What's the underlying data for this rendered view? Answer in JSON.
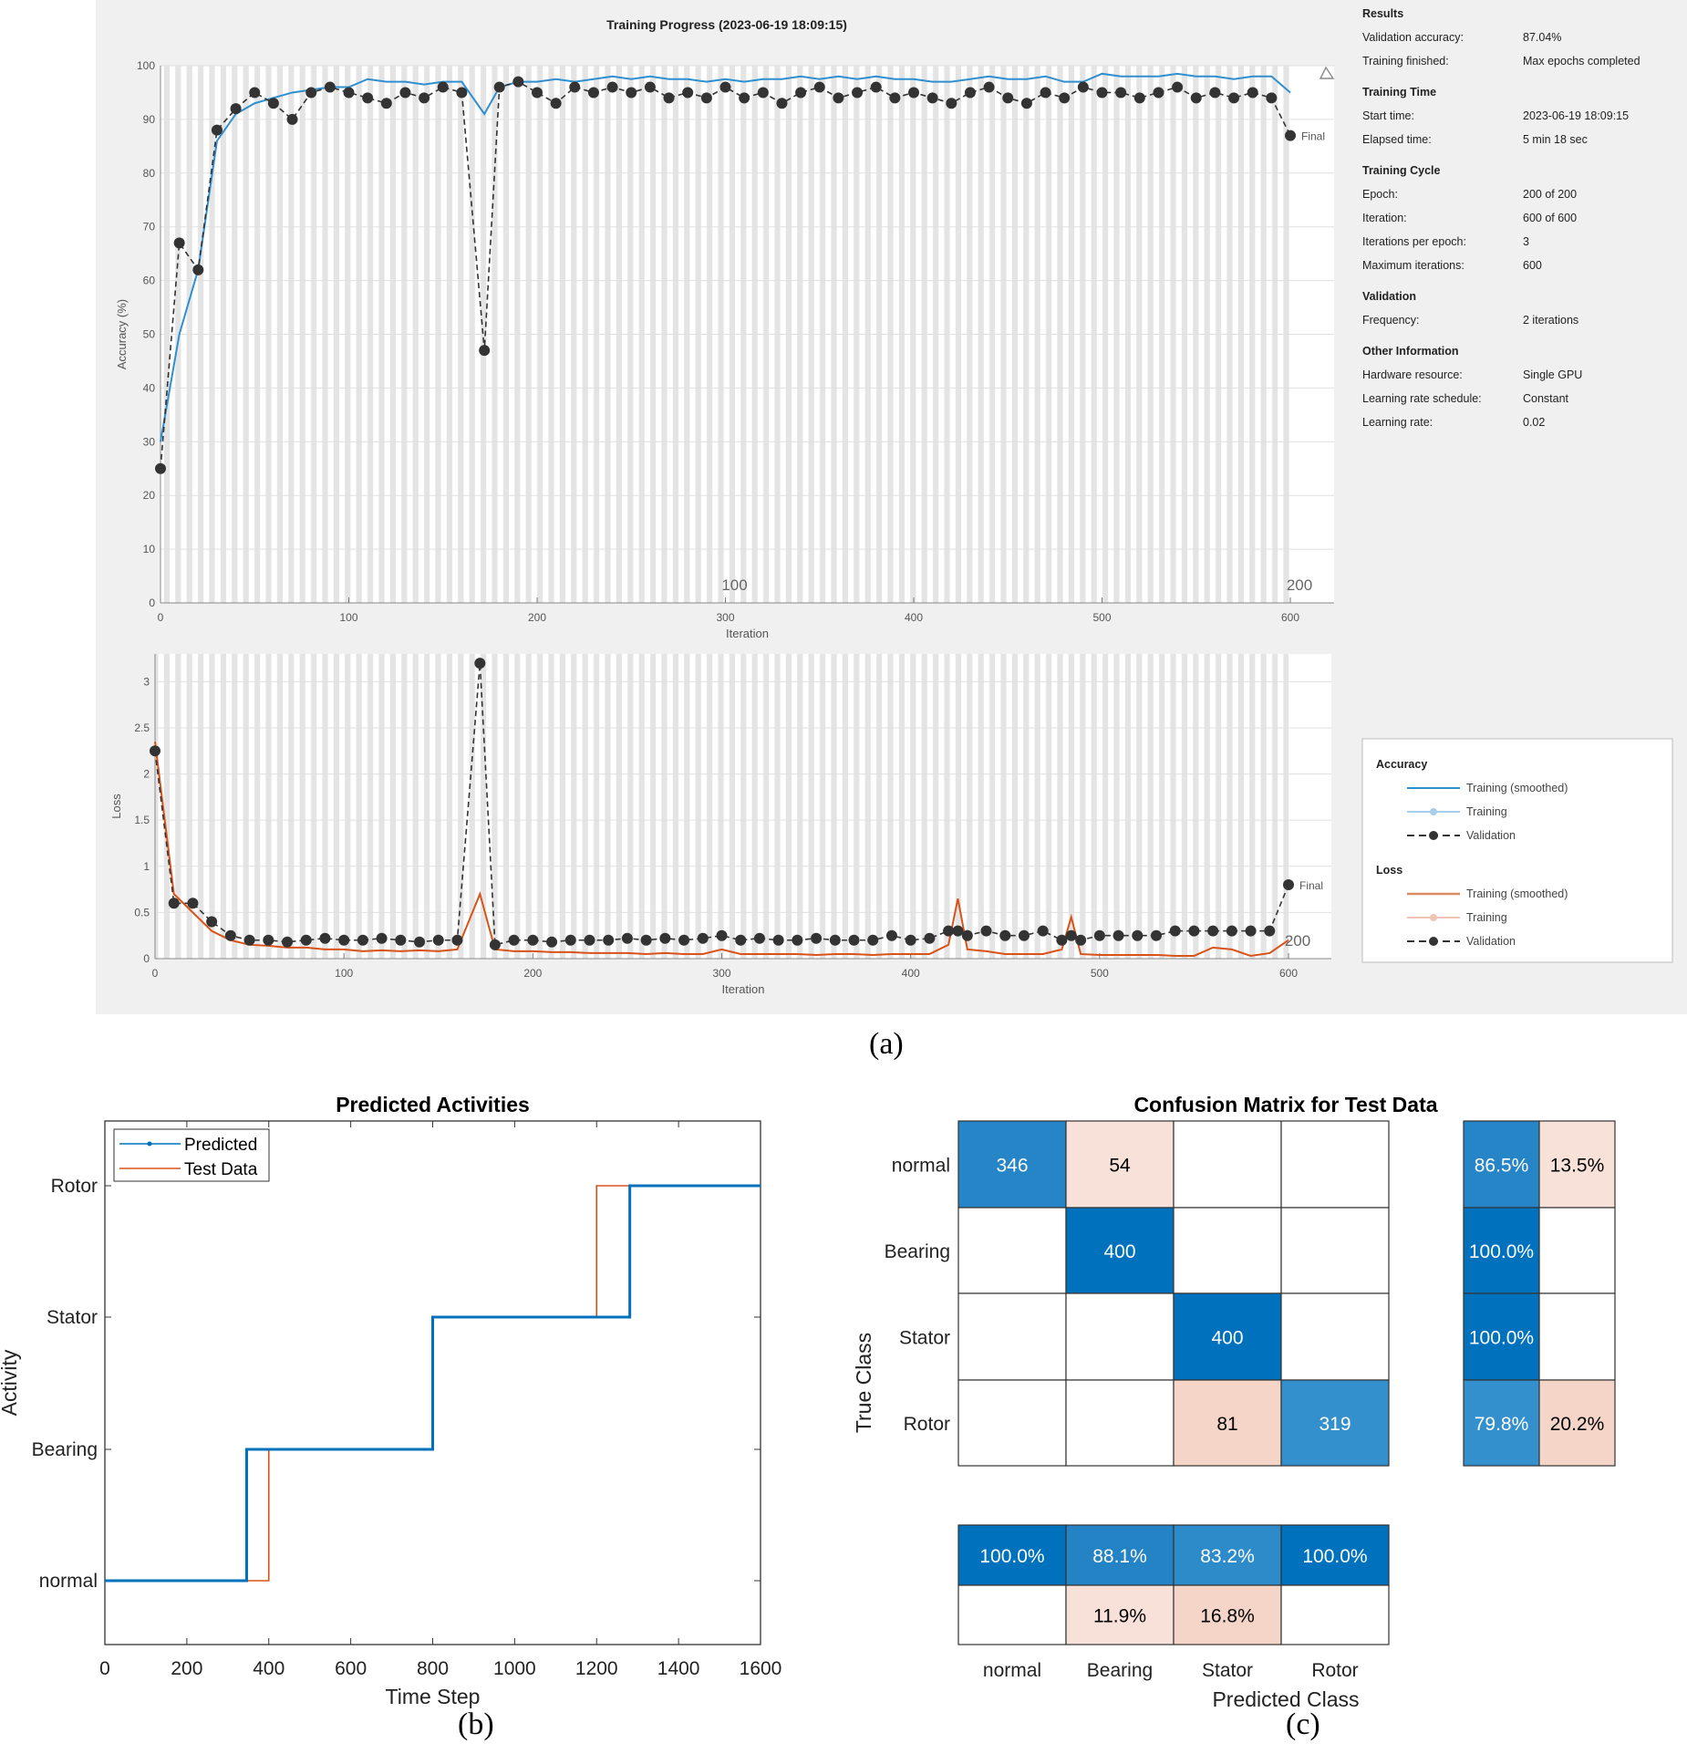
{
  "training_progress": {
    "title": "Training Progress (2023-06-19 18:09:15)",
    "info": [
      {
        "heading": "Results",
        "rows": [
          [
            "Validation accuracy:",
            "87.04%"
          ],
          [
            "Training finished:",
            "Max epochs completed"
          ]
        ]
      },
      {
        "heading": "Training Time",
        "rows": [
          [
            "Start time:",
            "2023-06-19 18:09:15"
          ],
          [
            "Elapsed time:",
            "5 min 18 sec"
          ]
        ]
      },
      {
        "heading": "Training Cycle",
        "rows": [
          [
            "Epoch:",
            "200 of 200"
          ],
          [
            "Iteration:",
            "600 of 600"
          ],
          [
            "Iterations per epoch:",
            "3"
          ],
          [
            "Maximum iterations:",
            "600"
          ]
        ]
      },
      {
        "heading": "Validation",
        "rows": [
          [
            "Frequency:",
            "2 iterations"
          ]
        ]
      },
      {
        "heading": "Other Information",
        "rows": [
          [
            "Hardware resource:",
            "Single GPU"
          ],
          [
            "Learning rate schedule:",
            "Constant"
          ],
          [
            "Learning rate:",
            "0.02"
          ]
        ]
      }
    ],
    "legend": {
      "accuracy_heading": "Accuracy",
      "loss_heading": "Loss",
      "smoothed": "Training (smoothed)",
      "training": "Training",
      "validation": "Validation"
    },
    "final_label": "Final",
    "caption": "(a)"
  },
  "chart_data": [
    {
      "type": "line",
      "title": "Training Progress (2023-06-19 18:09:15)",
      "xlabel": "Iteration",
      "ylabel": "Accuracy (%)",
      "xlim": [
        0,
        600
      ],
      "ylim": [
        0,
        100
      ],
      "xticks": [
        0,
        100,
        200,
        300,
        400,
        500,
        600
      ],
      "yticks": [
        0,
        10,
        20,
        30,
        40,
        50,
        60,
        70,
        80,
        90,
        100
      ],
      "epoch_ticks": [
        {
          "iteration": 300,
          "label": "100"
        },
        {
          "iteration": 600,
          "label": "200"
        }
      ],
      "x": [
        0,
        10,
        20,
        30,
        40,
        50,
        60,
        70,
        80,
        90,
        100,
        110,
        120,
        130,
        140,
        150,
        160,
        172,
        180,
        190,
        200,
        210,
        220,
        230,
        240,
        250,
        260,
        270,
        280,
        290,
        300,
        310,
        320,
        330,
        340,
        350,
        360,
        370,
        380,
        390,
        400,
        410,
        420,
        430,
        440,
        450,
        460,
        470,
        480,
        490,
        500,
        510,
        520,
        530,
        540,
        550,
        560,
        570,
        580,
        590,
        600
      ],
      "series": [
        {
          "name": "Training (smoothed)",
          "color": "#2f8fd0",
          "values": [
            30,
            50,
            62,
            86,
            91,
            93,
            94,
            95,
            95.5,
            96,
            96,
            97.5,
            97,
            97,
            96.5,
            97,
            97,
            91,
            96,
            97,
            97,
            97.5,
            97,
            97.5,
            98,
            97.5,
            98,
            97.5,
            97.5,
            97,
            97.5,
            97,
            97.5,
            97.5,
            98,
            97.5,
            98,
            97.5,
            98,
            97.5,
            97.5,
            97,
            97,
            97.5,
            98,
            97.5,
            97.5,
            98,
            97,
            97,
            98.5,
            98,
            98,
            98,
            98.5,
            98,
            98,
            97.5,
            98,
            98,
            95
          ]
        },
        {
          "name": "Validation",
          "color": "#333333",
          "values": [
            25,
            67,
            62,
            88,
            92,
            95,
            93,
            90,
            95,
            96,
            95,
            94,
            93,
            95,
            94,
            96,
            95,
            47,
            96,
            97,
            95,
            93,
            96,
            95,
            96,
            95,
            96,
            94,
            95,
            94,
            96,
            94,
            95,
            93,
            95,
            96,
            94,
            95,
            96,
            94,
            95,
            94,
            93,
            95,
            96,
            94,
            93,
            95,
            94,
            96,
            95,
            95,
            94,
            95,
            96,
            94,
            95,
            94,
            95,
            94,
            87
          ]
        }
      ]
    },
    {
      "type": "line",
      "xlabel": "Iteration",
      "ylabel": "Loss",
      "xlim": [
        0,
        600
      ],
      "ylim": [
        0,
        3.3
      ],
      "xticks": [
        0,
        100,
        200,
        300,
        400,
        500,
        600
      ],
      "yticks": [
        0,
        0.5,
        1,
        1.5,
        2,
        2.5,
        3
      ],
      "epoch_ticks": [
        {
          "iteration": 600,
          "label": "200"
        }
      ],
      "x": [
        0,
        10,
        20,
        30,
        40,
        50,
        60,
        70,
        80,
        90,
        100,
        110,
        120,
        130,
        140,
        150,
        160,
        172,
        180,
        190,
        200,
        210,
        220,
        230,
        240,
        250,
        260,
        270,
        280,
        290,
        300,
        310,
        320,
        330,
        340,
        350,
        360,
        370,
        380,
        390,
        400,
        410,
        420,
        425,
        430,
        440,
        450,
        460,
        470,
        480,
        485,
        490,
        500,
        510,
        520,
        530,
        540,
        550,
        560,
        570,
        580,
        590,
        600
      ],
      "series": [
        {
          "name": "Training (smoothed)",
          "color": "#d95319",
          "values": [
            2.35,
            0.7,
            0.5,
            0.3,
            0.2,
            0.15,
            0.14,
            0.12,
            0.12,
            0.1,
            0.1,
            0.08,
            0.09,
            0.08,
            0.09,
            0.08,
            0.1,
            0.7,
            0.1,
            0.08,
            0.08,
            0.07,
            0.07,
            0.06,
            0.06,
            0.06,
            0.05,
            0.06,
            0.05,
            0.05,
            0.1,
            0.05,
            0.05,
            0.05,
            0.05,
            0.04,
            0.05,
            0.05,
            0.04,
            0.05,
            0.05,
            0.05,
            0.15,
            0.65,
            0.1,
            0.08,
            0.05,
            0.05,
            0.05,
            0.1,
            0.45,
            0.05,
            0.04,
            0.04,
            0.04,
            0.04,
            0.03,
            0.03,
            0.12,
            0.1,
            0.03,
            0.06,
            0.2
          ]
        },
        {
          "name": "Validation",
          "color": "#333333",
          "values": [
            2.25,
            0.6,
            0.6,
            0.4,
            0.25,
            0.2,
            0.2,
            0.18,
            0.2,
            0.22,
            0.2,
            0.2,
            0.22,
            0.2,
            0.18,
            0.2,
            0.2,
            3.2,
            0.15,
            0.2,
            0.2,
            0.18,
            0.2,
            0.2,
            0.2,
            0.22,
            0.2,
            0.22,
            0.2,
            0.22,
            0.25,
            0.2,
            0.22,
            0.2,
            0.2,
            0.22,
            0.2,
            0.2,
            0.2,
            0.25,
            0.2,
            0.22,
            0.3,
            0.3,
            0.25,
            0.3,
            0.25,
            0.25,
            0.3,
            0.2,
            0.25,
            0.2,
            0.25,
            0.25,
            0.25,
            0.25,
            0.3,
            0.3,
            0.3,
            0.3,
            0.3,
            0.3,
            0.8
          ]
        }
      ]
    },
    {
      "type": "line",
      "title": "Predicted Activities",
      "xlabel": "Time Step",
      "ylabel": "Activity",
      "xlim": [
        0,
        1600
      ],
      "xticks": [
        0,
        200,
        400,
        600,
        800,
        1000,
        1200,
        1400,
        1600
      ],
      "categories": [
        "normal",
        "Bearing",
        "Stator",
        "Rotor"
      ],
      "legend": "top-left",
      "series": [
        {
          "name": "Predicted",
          "color": "#0072bd",
          "steps": [
            [
              0,
              "normal"
            ],
            [
              346,
              "Bearing"
            ],
            [
              800,
              "Stator"
            ],
            [
              1281,
              "Rotor"
            ],
            [
              1600,
              "Rotor"
            ]
          ]
        },
        {
          "name": "Test Data",
          "color": "#d95319",
          "steps": [
            [
              0,
              "normal"
            ],
            [
              400,
              "Bearing"
            ],
            [
              800,
              "Stator"
            ],
            [
              1200,
              "Rotor"
            ],
            [
              1600,
              "Rotor"
            ]
          ]
        }
      ],
      "caption": "(b)"
    },
    {
      "type": "heatmap",
      "title": "Confusion Matrix for Test Data",
      "xlabel": "Predicted Class",
      "ylabel": "True Class",
      "classes": [
        "normal",
        "Bearing",
        "Stator",
        "Rotor"
      ],
      "matrix": [
        [
          346,
          54,
          0,
          0
        ],
        [
          0,
          400,
          0,
          0
        ],
        [
          0,
          0,
          400,
          0
        ],
        [
          0,
          0,
          81,
          319
        ]
      ],
      "cell_colors": [
        [
          "#2585c7",
          "#f8e1d9",
          "#ffffff",
          "#ffffff"
        ],
        [
          "#ffffff",
          "#0072bd",
          "#ffffff",
          "#ffffff"
        ],
        [
          "#ffffff",
          "#ffffff",
          "#0072bd",
          "#ffffff"
        ],
        [
          "#ffffff",
          "#ffffff",
          "#f5d5c8",
          "#3490cd"
        ]
      ],
      "row_summary": [
        [
          "86.5%",
          "13.5%"
        ],
        [
          "100.0%",
          ""
        ],
        [
          "100.0%",
          ""
        ],
        [
          "79.8%",
          "20.2%"
        ]
      ],
      "row_summary_colors": [
        [
          "#2585c7",
          "#f8e1d9"
        ],
        [
          "#0072bd",
          "#ffffff"
        ],
        [
          "#0072bd",
          "#ffffff"
        ],
        [
          "#3490cd",
          "#f5d5c8"
        ]
      ],
      "col_summary": [
        [
          "100.0%",
          "88.1%",
          "83.2%",
          "100.0%"
        ],
        [
          "",
          "11.9%",
          "16.8%",
          ""
        ]
      ],
      "col_summary_colors": [
        [
          "#0072bd",
          "#2483c5",
          "#2d8bca",
          "#0072bd"
        ],
        [
          "#ffffff",
          "#f8e1d9",
          "#f5d5c8",
          "#ffffff"
        ]
      ],
      "caption": "(c)"
    }
  ]
}
